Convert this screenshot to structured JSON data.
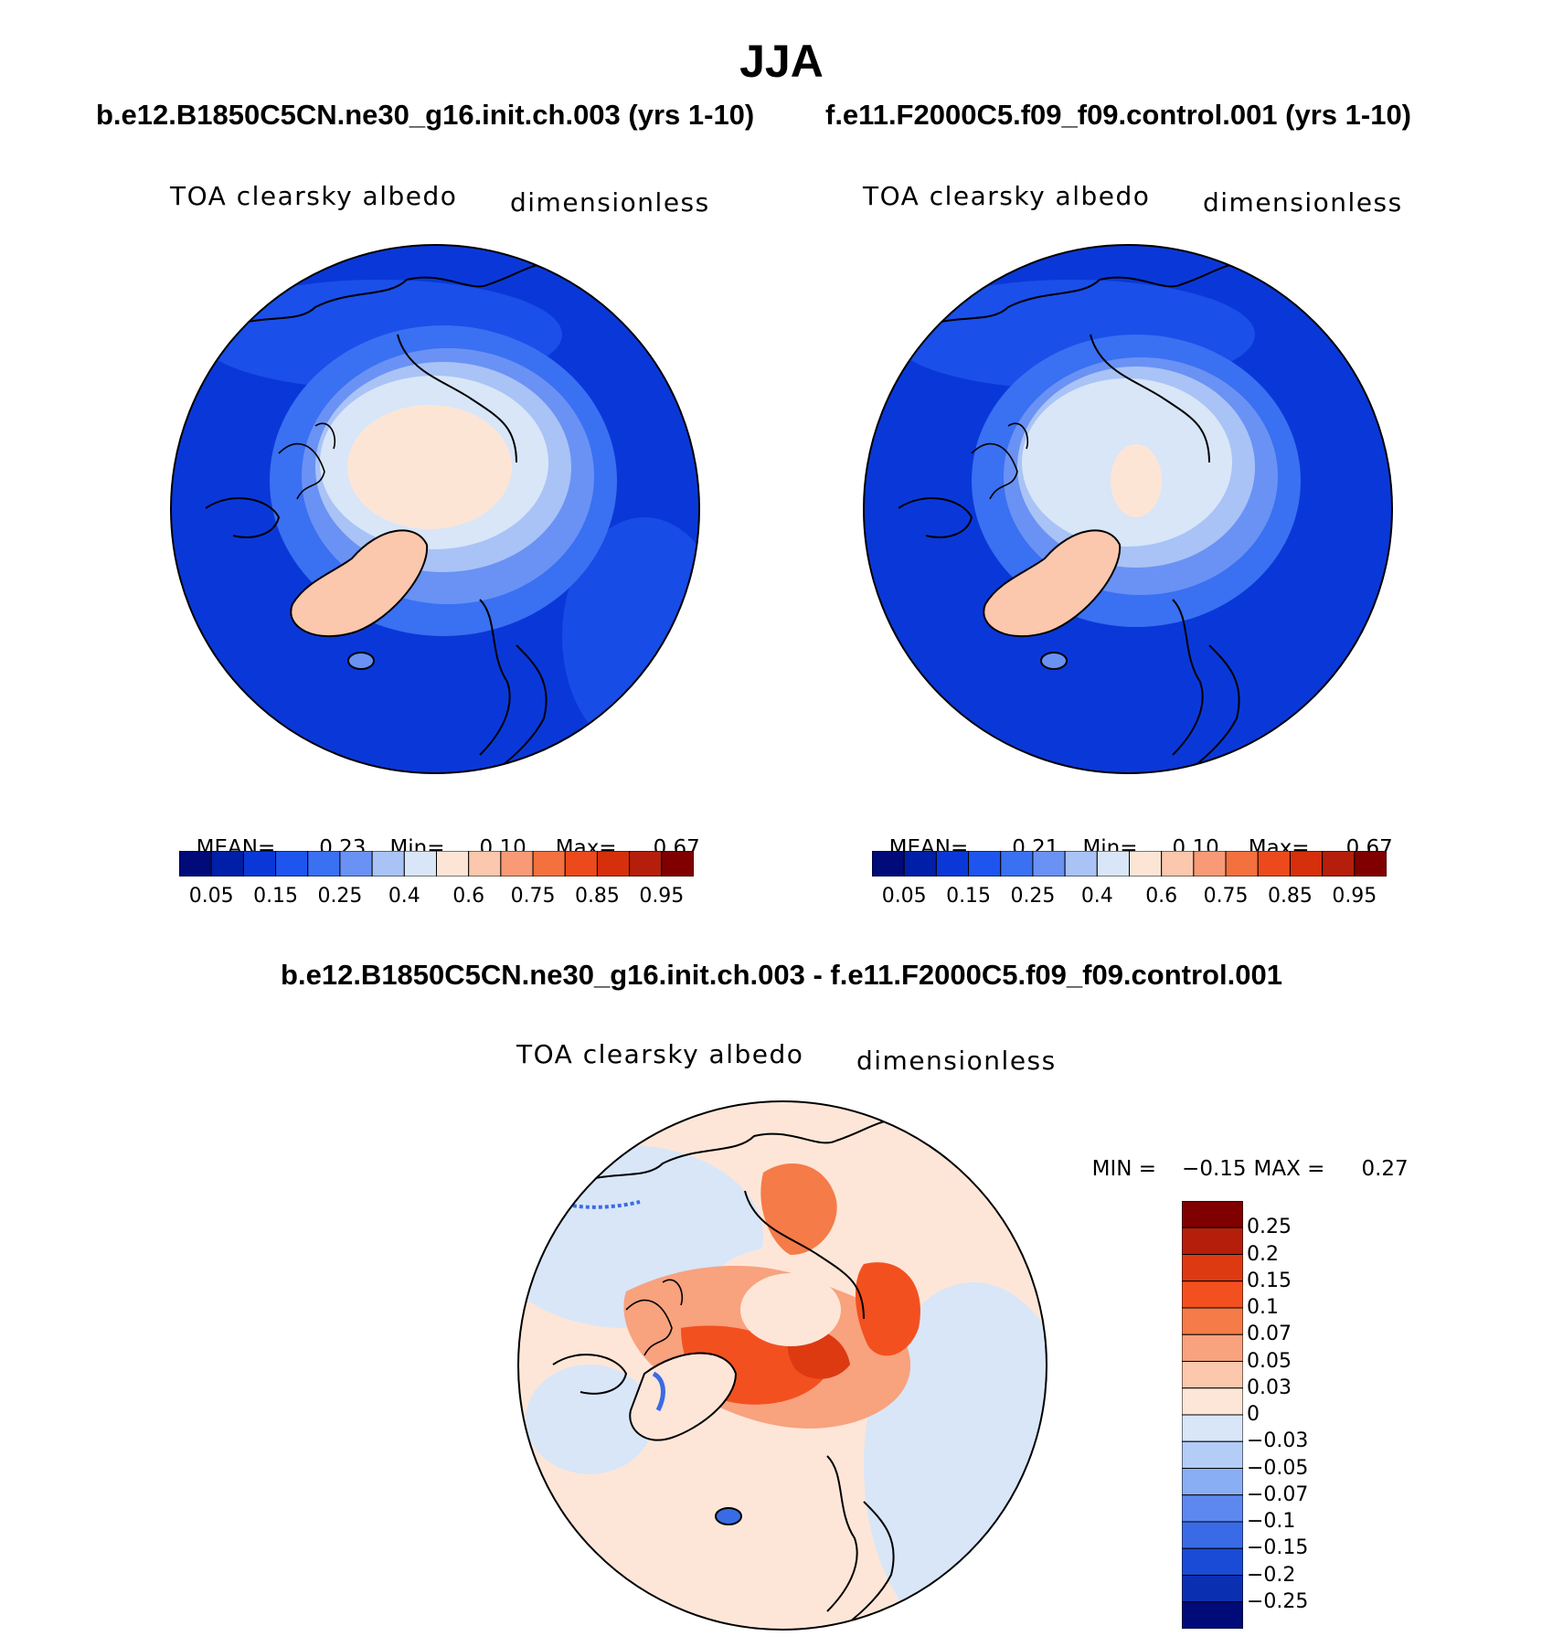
{
  "figure": {
    "season": "JJA",
    "panel_left": {
      "case": "b.e12.B1850C5CN.ne30_g16.init.ch.003 (yrs 1-10)",
      "variable": "TOA clearsky albedo",
      "units": "dimensionless",
      "stats": {
        "mean_label": "MEAN=",
        "mean": "0.23",
        "min_label": "Min=",
        "min": "0.10",
        "max_label": "Max=",
        "max": "0.67"
      }
    },
    "panel_right": {
      "case": "f.e11.F2000C5.f09_f09.control.001 (yrs 1-10)",
      "variable": "TOA clearsky albedo",
      "units": "dimensionless",
      "stats": {
        "mean_label": "MEAN=",
        "mean": "0.21",
        "min_label": "Min=",
        "min": "0.10",
        "max_label": "Max=",
        "max": "0.67"
      }
    },
    "panel_diff": {
      "case": "b.e12.B1850C5CN.ne30_g16.init.ch.003 - f.e11.F2000C5.f09_f09.control.001",
      "variable": "TOA clearsky albedo",
      "units": "dimensionless",
      "stats": {
        "min_label": "MIN =",
        "min": "−0.15",
        "max_label": "MAX =",
        "max": "0.27"
      }
    }
  },
  "colorbar_abs": {
    "colors": [
      "#000a78",
      "#001fa8",
      "#0a38d8",
      "#1e55ee",
      "#3a70f2",
      "#6a92f4",
      "#a9c3f6",
      "#d8e6f8",
      "#fde5d6",
      "#fbc7ad",
      "#f79a75",
      "#f3703f",
      "#ec4a1c",
      "#d62f0c",
      "#b51e0a",
      "#800000"
    ],
    "tick_labels": [
      "0.05",
      "0.15",
      "0.25",
      "0.4",
      "0.6",
      "0.75",
      "0.85",
      "0.95"
    ]
  },
  "colorbar_diff": {
    "colors": [
      "#800000",
      "#b51e0a",
      "#dd3a12",
      "#f35020",
      "#f57b48",
      "#f8a27e",
      "#fbc8ad",
      "#fde6d8",
      "#d8e6f8",
      "#b3cdf6",
      "#8aaef4",
      "#5d88f0",
      "#3a6be6",
      "#1a4bd6",
      "#0a2fb0",
      "#000a78"
    ],
    "tick_labels": [
      "0.25",
      "0.2",
      "0.15",
      "0.1",
      "0.07",
      "0.05",
      "0.03",
      "0",
      "−0.03",
      "−0.05",
      "−0.07",
      "−0.1",
      "−0.15",
      "−0.2",
      "−0.25"
    ]
  }
}
